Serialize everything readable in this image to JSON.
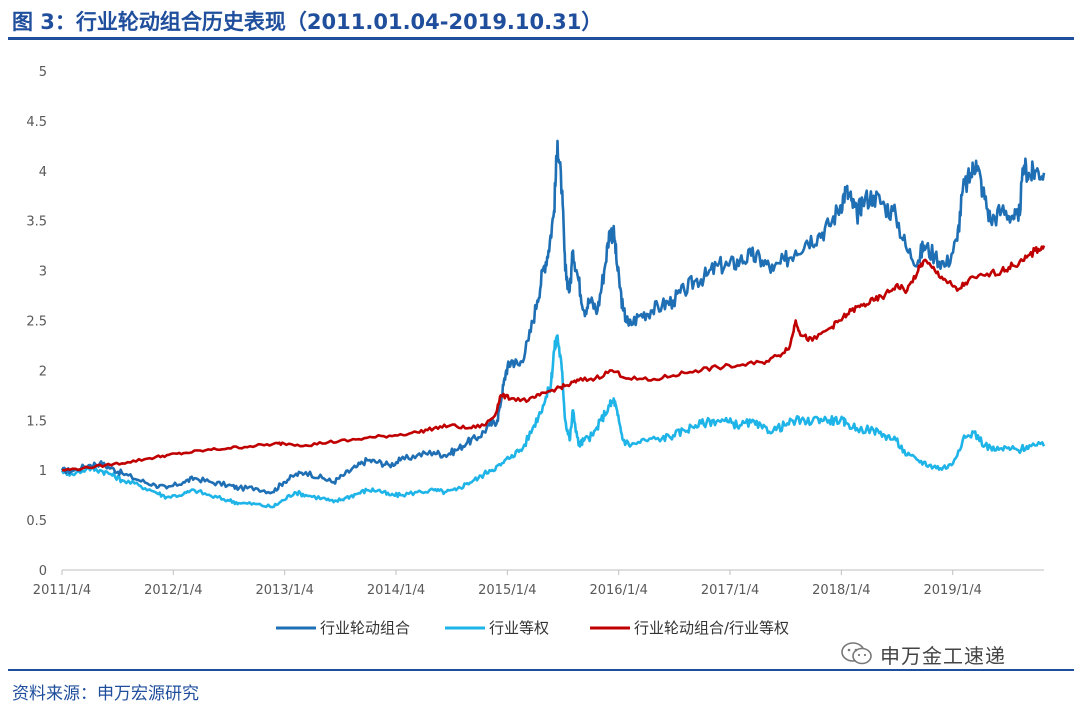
{
  "title": "图 3：行业轮动组合历史表现（2011.01.04-2019.10.31）",
  "source": "资料来源：申万宏源研究",
  "watermark": {
    "text": "申万金工速递",
    "icon": "wechat-icon"
  },
  "colors": {
    "rotation": "#1f6fb5",
    "equal_weight": "#1fb4e8",
    "ratio": "#c00000",
    "accent": "#1f4e9c"
  },
  "chart_data": {
    "type": "line",
    "title": "",
    "xlabel": "",
    "ylabel": "",
    "ylim": [
      0,
      5
    ],
    "yticks": [
      "0",
      "0.5",
      "1",
      "1.5",
      "2",
      "2.5",
      "3",
      "3.5",
      "4",
      "4.5",
      "5"
    ],
    "xlim": [
      2011.01,
      2019.83
    ],
    "xticks": [
      {
        "label": "2011/1/4",
        "x": 2011.01
      },
      {
        "label": "2012/1/4",
        "x": 2012.01
      },
      {
        "label": "2013/1/4",
        "x": 2013.01
      },
      {
        "label": "2014/1/4",
        "x": 2014.01
      },
      {
        "label": "2015/1/4",
        "x": 2015.01
      },
      {
        "label": "2016/1/4",
        "x": 2016.01
      },
      {
        "label": "2017/1/4",
        "x": 2017.01
      },
      {
        "label": "2018/1/4",
        "x": 2018.01
      },
      {
        "label": "2019/1/4",
        "x": 2019.01
      }
    ],
    "grid": false,
    "legend_position": "bottom",
    "series": [
      {
        "name": "行业轮动组合",
        "color": "#1f6fb5",
        "points": [
          [
            2011.01,
            1.0
          ],
          [
            2011.1,
            0.99
          ],
          [
            2011.25,
            1.05
          ],
          [
            2011.35,
            1.07
          ],
          [
            2011.45,
            1.02
          ],
          [
            2011.55,
            0.97
          ],
          [
            2011.7,
            0.9
          ],
          [
            2011.85,
            0.85
          ],
          [
            2011.95,
            0.82
          ],
          [
            2012.1,
            0.88
          ],
          [
            2012.2,
            0.92
          ],
          [
            2012.35,
            0.88
          ],
          [
            2012.5,
            0.85
          ],
          [
            2012.6,
            0.82
          ],
          [
            2012.75,
            0.82
          ],
          [
            2012.9,
            0.78
          ],
          [
            2013.0,
            0.88
          ],
          [
            2013.1,
            0.95
          ],
          [
            2013.2,
            0.98
          ],
          [
            2013.35,
            0.92
          ],
          [
            2013.45,
            0.88
          ],
          [
            2013.55,
            0.96
          ],
          [
            2013.65,
            1.03
          ],
          [
            2013.75,
            1.1
          ],
          [
            2013.85,
            1.08
          ],
          [
            2013.95,
            1.05
          ],
          [
            2014.05,
            1.1
          ],
          [
            2014.2,
            1.15
          ],
          [
            2014.35,
            1.18
          ],
          [
            2014.45,
            1.15
          ],
          [
            2014.55,
            1.2
          ],
          [
            2014.65,
            1.28
          ],
          [
            2014.75,
            1.33
          ],
          [
            2014.85,
            1.45
          ],
          [
            2014.92,
            1.5
          ],
          [
            2014.96,
            1.75
          ],
          [
            2015.0,
            2.0
          ],
          [
            2015.05,
            2.1
          ],
          [
            2015.12,
            2.05
          ],
          [
            2015.2,
            2.3
          ],
          [
            2015.28,
            2.7
          ],
          [
            2015.33,
            3.0
          ],
          [
            2015.38,
            3.2
          ],
          [
            2015.43,
            3.6
          ],
          [
            2015.46,
            4.3
          ],
          [
            2015.5,
            3.8
          ],
          [
            2015.53,
            3.0
          ],
          [
            2015.57,
            2.8
          ],
          [
            2015.6,
            3.2
          ],
          [
            2015.65,
            2.9
          ],
          [
            2015.7,
            2.6
          ],
          [
            2015.75,
            2.7
          ],
          [
            2015.82,
            2.6
          ],
          [
            2015.88,
            3.0
          ],
          [
            2015.93,
            3.4
          ],
          [
            2015.97,
            3.35
          ],
          [
            2016.0,
            3.0
          ],
          [
            2016.05,
            2.6
          ],
          [
            2016.1,
            2.45
          ],
          [
            2016.2,
            2.55
          ],
          [
            2016.3,
            2.6
          ],
          [
            2016.4,
            2.65
          ],
          [
            2016.5,
            2.7
          ],
          [
            2016.6,
            2.8
          ],
          [
            2016.7,
            2.9
          ],
          [
            2016.8,
            2.95
          ],
          [
            2016.9,
            3.05
          ],
          [
            2017.0,
            3.05
          ],
          [
            2017.1,
            3.1
          ],
          [
            2017.2,
            3.15
          ],
          [
            2017.3,
            3.1
          ],
          [
            2017.4,
            3.0
          ],
          [
            2017.5,
            3.1
          ],
          [
            2017.6,
            3.2
          ],
          [
            2017.7,
            3.3
          ],
          [
            2017.8,
            3.35
          ],
          [
            2017.9,
            3.45
          ],
          [
            2018.0,
            3.65
          ],
          [
            2018.05,
            3.8
          ],
          [
            2018.1,
            3.7
          ],
          [
            2018.15,
            3.55
          ],
          [
            2018.2,
            3.7
          ],
          [
            2018.3,
            3.75
          ],
          [
            2018.4,
            3.65
          ],
          [
            2018.5,
            3.55
          ],
          [
            2018.6,
            3.2
          ],
          [
            2018.7,
            3.1
          ],
          [
            2018.75,
            3.25
          ],
          [
            2018.85,
            3.15
          ],
          [
            2018.95,
            3.05
          ],
          [
            2019.05,
            3.3
          ],
          [
            2019.1,
            3.8
          ],
          [
            2019.17,
            3.95
          ],
          [
            2019.22,
            4.1
          ],
          [
            2019.28,
            3.8
          ],
          [
            2019.35,
            3.5
          ],
          [
            2019.45,
            3.6
          ],
          [
            2019.55,
            3.55
          ],
          [
            2019.6,
            3.5
          ],
          [
            2019.65,
            4.05
          ],
          [
            2019.7,
            3.95
          ],
          [
            2019.75,
            4.0
          ],
          [
            2019.83,
            3.98
          ]
        ]
      },
      {
        "name": "行业等权",
        "color": "#1fb4e8",
        "points": [
          [
            2011.01,
            1.0
          ],
          [
            2011.1,
            0.96
          ],
          [
            2011.25,
            1.02
          ],
          [
            2011.35,
            1.0
          ],
          [
            2011.45,
            0.96
          ],
          [
            2011.55,
            0.9
          ],
          [
            2011.7,
            0.85
          ],
          [
            2011.85,
            0.78
          ],
          [
            2011.95,
            0.73
          ],
          [
            2012.1,
            0.76
          ],
          [
            2012.2,
            0.8
          ],
          [
            2012.35,
            0.74
          ],
          [
            2012.5,
            0.7
          ],
          [
            2012.6,
            0.67
          ],
          [
            2012.75,
            0.66
          ],
          [
            2012.9,
            0.63
          ],
          [
            2013.0,
            0.7
          ],
          [
            2013.1,
            0.78
          ],
          [
            2013.2,
            0.75
          ],
          [
            2013.35,
            0.72
          ],
          [
            2013.45,
            0.68
          ],
          [
            2013.55,
            0.72
          ],
          [
            2013.65,
            0.76
          ],
          [
            2013.75,
            0.8
          ],
          [
            2013.85,
            0.8
          ],
          [
            2013.95,
            0.75
          ],
          [
            2014.05,
            0.75
          ],
          [
            2014.2,
            0.78
          ],
          [
            2014.35,
            0.8
          ],
          [
            2014.45,
            0.78
          ],
          [
            2014.55,
            0.8
          ],
          [
            2014.65,
            0.87
          ],
          [
            2014.75,
            0.92
          ],
          [
            2014.85,
            1.0
          ],
          [
            2014.95,
            1.05
          ],
          [
            2015.05,
            1.15
          ],
          [
            2015.15,
            1.22
          ],
          [
            2015.25,
            1.45
          ],
          [
            2015.33,
            1.65
          ],
          [
            2015.4,
            1.85
          ],
          [
            2015.43,
            2.2
          ],
          [
            2015.46,
            2.35
          ],
          [
            2015.5,
            2.0
          ],
          [
            2015.53,
            1.5
          ],
          [
            2015.57,
            1.3
          ],
          [
            2015.6,
            1.6
          ],
          [
            2015.65,
            1.25
          ],
          [
            2015.7,
            1.3
          ],
          [
            2015.78,
            1.35
          ],
          [
            2015.85,
            1.5
          ],
          [
            2015.93,
            1.65
          ],
          [
            2015.97,
            1.7
          ],
          [
            2016.0,
            1.55
          ],
          [
            2016.05,
            1.3
          ],
          [
            2016.12,
            1.25
          ],
          [
            2016.25,
            1.3
          ],
          [
            2016.4,
            1.32
          ],
          [
            2016.5,
            1.35
          ],
          [
            2016.6,
            1.4
          ],
          [
            2016.7,
            1.45
          ],
          [
            2016.8,
            1.48
          ],
          [
            2016.9,
            1.5
          ],
          [
            2017.0,
            1.48
          ],
          [
            2017.1,
            1.45
          ],
          [
            2017.2,
            1.48
          ],
          [
            2017.3,
            1.42
          ],
          [
            2017.4,
            1.4
          ],
          [
            2017.5,
            1.45
          ],
          [
            2017.6,
            1.5
          ],
          [
            2017.7,
            1.48
          ],
          [
            2017.8,
            1.52
          ],
          [
            2017.9,
            1.5
          ],
          [
            2018.0,
            1.5
          ],
          [
            2018.05,
            1.47
          ],
          [
            2018.15,
            1.42
          ],
          [
            2018.3,
            1.4
          ],
          [
            2018.4,
            1.35
          ],
          [
            2018.5,
            1.3
          ],
          [
            2018.6,
            1.15
          ],
          [
            2018.7,
            1.1
          ],
          [
            2018.8,
            1.05
          ],
          [
            2018.9,
            1.02
          ],
          [
            2019.0,
            1.05
          ],
          [
            2019.1,
            1.3
          ],
          [
            2019.2,
            1.38
          ],
          [
            2019.3,
            1.25
          ],
          [
            2019.4,
            1.2
          ],
          [
            2019.5,
            1.22
          ],
          [
            2019.6,
            1.2
          ],
          [
            2019.7,
            1.25
          ],
          [
            2019.83,
            1.24
          ]
        ]
      },
      {
        "name": "行业轮动组合/行业等权",
        "color": "#c00000",
        "points": [
          [
            2011.01,
            1.0
          ],
          [
            2011.2,
            1.02
          ],
          [
            2011.4,
            1.05
          ],
          [
            2011.6,
            1.08
          ],
          [
            2011.8,
            1.12
          ],
          [
            2011.95,
            1.15
          ],
          [
            2012.1,
            1.17
          ],
          [
            2012.3,
            1.2
          ],
          [
            2012.5,
            1.22
          ],
          [
            2012.7,
            1.24
          ],
          [
            2012.9,
            1.26
          ],
          [
            2013.0,
            1.27
          ],
          [
            2013.2,
            1.25
          ],
          [
            2013.4,
            1.28
          ],
          [
            2013.6,
            1.3
          ],
          [
            2013.8,
            1.33
          ],
          [
            2014.0,
            1.35
          ],
          [
            2014.2,
            1.38
          ],
          [
            2014.35,
            1.42
          ],
          [
            2014.5,
            1.45
          ],
          [
            2014.65,
            1.42
          ],
          [
            2014.8,
            1.45
          ],
          [
            2014.9,
            1.55
          ],
          [
            2014.95,
            1.75
          ],
          [
            2015.05,
            1.72
          ],
          [
            2015.2,
            1.7
          ],
          [
            2015.3,
            1.75
          ],
          [
            2015.45,
            1.82
          ],
          [
            2015.55,
            1.85
          ],
          [
            2015.65,
            1.9
          ],
          [
            2015.8,
            1.92
          ],
          [
            2015.95,
            2.0
          ],
          [
            2016.1,
            1.92
          ],
          [
            2016.3,
            1.9
          ],
          [
            2016.5,
            1.95
          ],
          [
            2016.7,
            2.0
          ],
          [
            2016.9,
            2.03
          ],
          [
            2017.1,
            2.05
          ],
          [
            2017.3,
            2.08
          ],
          [
            2017.45,
            2.15
          ],
          [
            2017.55,
            2.25
          ],
          [
            2017.6,
            2.5
          ],
          [
            2017.65,
            2.35
          ],
          [
            2017.75,
            2.3
          ],
          [
            2017.9,
            2.42
          ],
          [
            2018.0,
            2.5
          ],
          [
            2018.1,
            2.6
          ],
          [
            2018.2,
            2.65
          ],
          [
            2018.3,
            2.7
          ],
          [
            2018.4,
            2.75
          ],
          [
            2018.5,
            2.85
          ],
          [
            2018.6,
            2.8
          ],
          [
            2018.7,
            3.0
          ],
          [
            2018.75,
            3.1
          ],
          [
            2018.85,
            3.0
          ],
          [
            2018.95,
            2.9
          ],
          [
            2019.05,
            2.8
          ],
          [
            2019.15,
            2.9
          ],
          [
            2019.3,
            2.95
          ],
          [
            2019.45,
            3.0
          ],
          [
            2019.55,
            3.05
          ],
          [
            2019.65,
            3.1
          ],
          [
            2019.75,
            3.2
          ],
          [
            2019.83,
            3.25
          ]
        ]
      }
    ]
  }
}
